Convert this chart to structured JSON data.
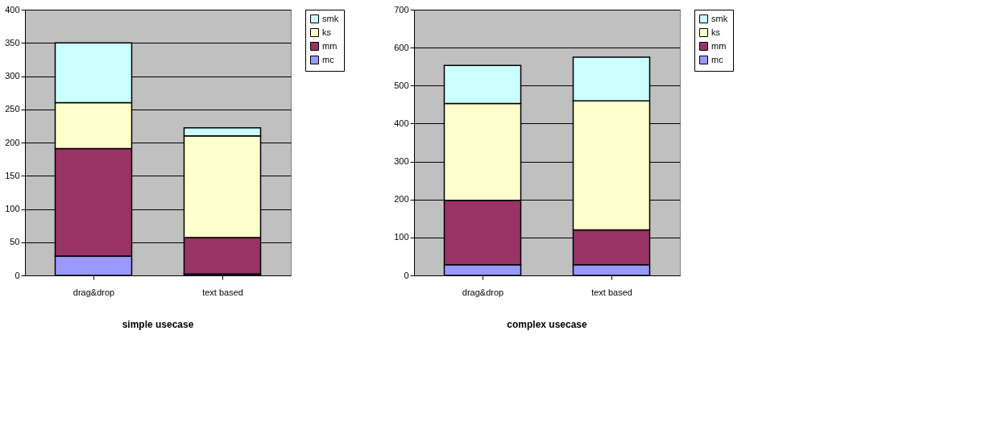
{
  "chart_data": [
    {
      "type": "bar",
      "stacked": true,
      "title": "simple usecase",
      "categories": [
        "drag&drop",
        "text based"
      ],
      "ylim": [
        0,
        400
      ],
      "yticks": [
        0,
        50,
        100,
        150,
        200,
        250,
        300,
        350,
        400
      ],
      "grid": "y",
      "legend": "right",
      "series": [
        {
          "name": "mc",
          "color": "#9999ff",
          "values": [
            29,
            2
          ]
        },
        {
          "name": "mm",
          "color": "#993366",
          "values": [
            162,
            55
          ]
        },
        {
          "name": "ks",
          "color": "#ffffcc",
          "values": [
            69,
            153
          ]
        },
        {
          "name": "smk",
          "color": "#ccffff",
          "values": [
            90,
            12
          ]
        }
      ]
    },
    {
      "type": "bar",
      "stacked": true,
      "title": "complex usecase",
      "categories": [
        "drag&drop",
        "text based"
      ],
      "ylim": [
        0,
        700
      ],
      "yticks": [
        0,
        100,
        200,
        300,
        400,
        500,
        600,
        700
      ],
      "grid": "y",
      "legend": "right",
      "series": [
        {
          "name": "mc",
          "color": "#9999ff",
          "values": [
            28,
            28
          ]
        },
        {
          "name": "mm",
          "color": "#993366",
          "values": [
            170,
            92
          ]
        },
        {
          "name": "ks",
          "color": "#ffffcc",
          "values": [
            255,
            340
          ]
        },
        {
          "name": "smk",
          "color": "#ccffff",
          "values": [
            100,
            115
          ]
        }
      ]
    }
  ]
}
